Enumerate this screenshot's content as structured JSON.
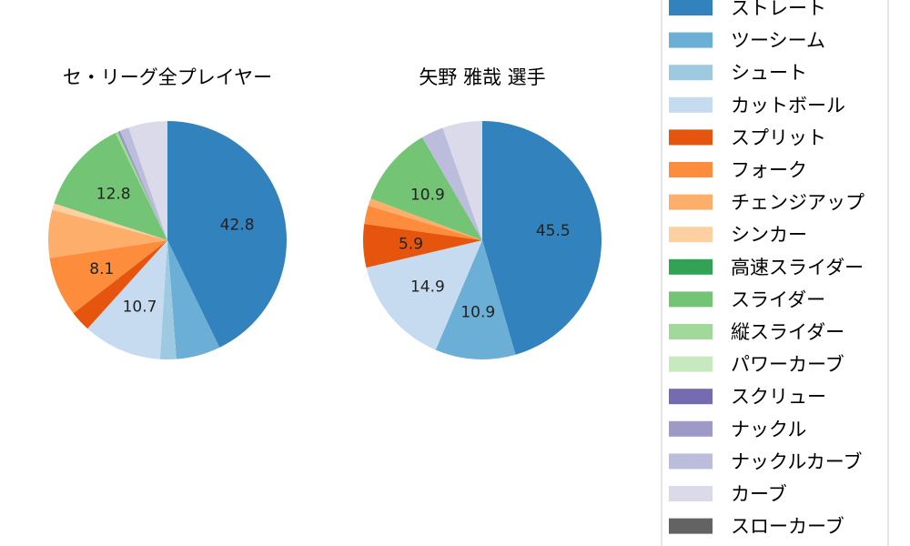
{
  "legend": {
    "items": [
      {
        "label": "ストレート",
        "color": "#3182bd"
      },
      {
        "label": "ツーシーム",
        "color": "#6baed6"
      },
      {
        "label": "シュート",
        "color": "#9ecae1"
      },
      {
        "label": "カットボール",
        "color": "#c6dbef"
      },
      {
        "label": "スプリット",
        "color": "#e6550d"
      },
      {
        "label": "フォーク",
        "color": "#fd8d3c"
      },
      {
        "label": "チェンジアップ",
        "color": "#fdae6b"
      },
      {
        "label": "シンカー",
        "color": "#fdd0a2"
      },
      {
        "label": "高速スライダー",
        "color": "#31a354"
      },
      {
        "label": "スライダー",
        "color": "#74c476"
      },
      {
        "label": "縦スライダー",
        "color": "#a1d99b"
      },
      {
        "label": "パワーカーブ",
        "color": "#c7e9c0"
      },
      {
        "label": "スクリュー",
        "color": "#756bb1"
      },
      {
        "label": "ナックル",
        "color": "#9e9ac8"
      },
      {
        "label": "ナックルカーブ",
        "color": "#bcbddc"
      },
      {
        "label": "カーブ",
        "color": "#dadaeb"
      },
      {
        "label": "スローカーブ",
        "color": "#636363"
      }
    ]
  },
  "chart_data": [
    {
      "type": "pie",
      "title": "セ・リーグ全プレイヤー",
      "start_angle_deg": 90,
      "direction": "clockwise",
      "slices": [
        {
          "label": "ストレート",
          "value": 42.8,
          "show_label": true
        },
        {
          "label": "ツーシーム",
          "value": 6.0,
          "show_label": false
        },
        {
          "label": "シュート",
          "value": 2.2,
          "show_label": false
        },
        {
          "label": "カットボール",
          "value": 10.7,
          "show_label": true
        },
        {
          "label": "スプリット",
          "value": 2.8,
          "show_label": false
        },
        {
          "label": "フォーク",
          "value": 8.1,
          "show_label": true
        },
        {
          "label": "チェンジアップ",
          "value": 6.5,
          "show_label": false
        },
        {
          "label": "シンカー",
          "value": 0.9,
          "show_label": false
        },
        {
          "label": "高速スライダー",
          "value": 0.0,
          "show_label": false
        },
        {
          "label": "スライダー",
          "value": 12.8,
          "show_label": true
        },
        {
          "label": "縦スライダー",
          "value": 0.4,
          "show_label": false
        },
        {
          "label": "パワーカーブ",
          "value": 0.0,
          "show_label": false
        },
        {
          "label": "スクリュー",
          "value": 0.1,
          "show_label": false
        },
        {
          "label": "ナックル",
          "value": 0.2,
          "show_label": false
        },
        {
          "label": "ナックルカーブ",
          "value": 1.2,
          "show_label": false
        },
        {
          "label": "カーブ",
          "value": 5.3,
          "show_label": false
        },
        {
          "label": "スローカーブ",
          "value": 0.0,
          "show_label": false
        }
      ]
    },
    {
      "type": "pie",
      "title": "矢野 雅哉 選手",
      "start_angle_deg": 90,
      "direction": "clockwise",
      "slices": [
        {
          "label": "ストレート",
          "value": 45.5,
          "show_label": true
        },
        {
          "label": "ツーシーム",
          "value": 10.9,
          "show_label": true
        },
        {
          "label": "シュート",
          "value": 0.0,
          "show_label": false
        },
        {
          "label": "カットボール",
          "value": 14.9,
          "show_label": true
        },
        {
          "label": "スプリット",
          "value": 5.9,
          "show_label": true
        },
        {
          "label": "フォーク",
          "value": 2.5,
          "show_label": false
        },
        {
          "label": "チェンジアップ",
          "value": 1.0,
          "show_label": false
        },
        {
          "label": "シンカー",
          "value": 0.0,
          "show_label": false
        },
        {
          "label": "高速スライダー",
          "value": 0.0,
          "show_label": false
        },
        {
          "label": "スライダー",
          "value": 10.9,
          "show_label": true
        },
        {
          "label": "縦スライダー",
          "value": 0.0,
          "show_label": false
        },
        {
          "label": "パワーカーブ",
          "value": 0.0,
          "show_label": false
        },
        {
          "label": "スクリュー",
          "value": 0.0,
          "show_label": false
        },
        {
          "label": "ナックル",
          "value": 0.0,
          "show_label": false
        },
        {
          "label": "ナックルカーブ",
          "value": 3.0,
          "show_label": false
        },
        {
          "label": "カーブ",
          "value": 5.4,
          "show_label": false
        },
        {
          "label": "スローカーブ",
          "value": 0.0,
          "show_label": false
        }
      ]
    }
  ]
}
